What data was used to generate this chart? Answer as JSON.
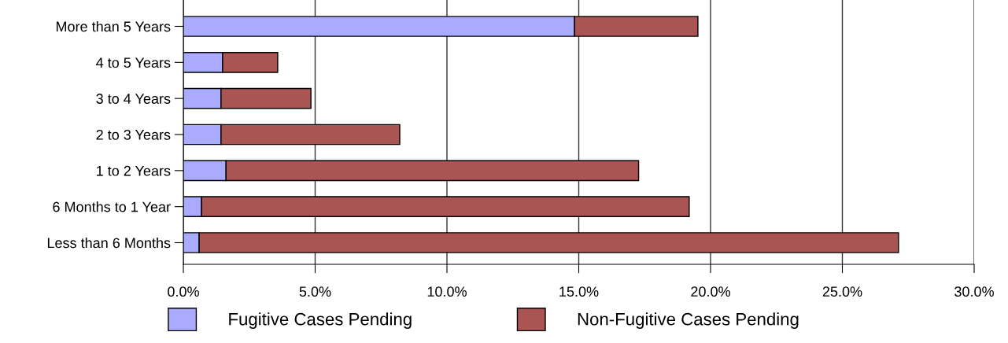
{
  "chart_data": {
    "type": "bar",
    "orientation": "horizontal",
    "stacked": true,
    "categories": [
      "More than 5 Years",
      "4 to 5 Years",
      "3 to 4 Years",
      "2 to 3 Years",
      "1 to 2 Years",
      "6 Months to 1 Year",
      "Less than 6 Months"
    ],
    "series": [
      {
        "name": "Fugitive Cases Pending",
        "color": "#aaaaff",
        "values": [
          14.84,
          1.49,
          1.43,
          1.43,
          1.62,
          0.69,
          0.6
        ]
      },
      {
        "name": "Non-Fugitive Cases Pending",
        "color": "#ab5454",
        "values": [
          4.68,
          2.09,
          3.41,
          6.78,
          15.65,
          18.5,
          26.53
        ]
      }
    ],
    "xlim": [
      0,
      30
    ],
    "xticks": [
      {
        "value": 0,
        "label": "0.0%"
      },
      {
        "value": 5,
        "label": "5.0%"
      },
      {
        "value": 10,
        "label": "10.0%"
      },
      {
        "value": 15,
        "label": "15.0%"
      },
      {
        "value": 20,
        "label": "20.0%"
      },
      {
        "value": 25,
        "label": "25.0%"
      },
      {
        "value": 30,
        "label": "30.0%"
      }
    ],
    "grid": "x",
    "legend": "bottom"
  }
}
